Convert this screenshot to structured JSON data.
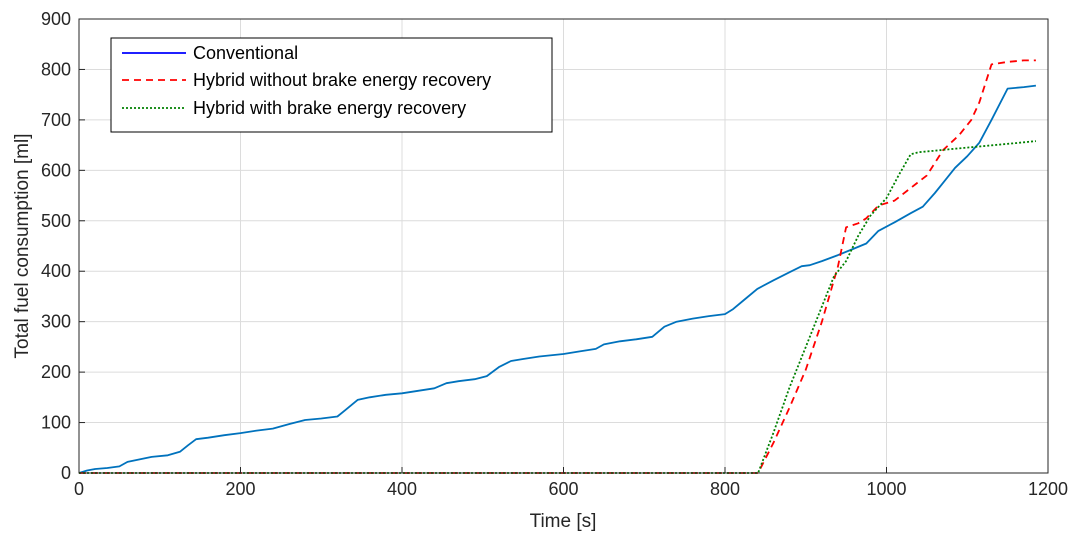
{
  "chart_data": {
    "type": "line",
    "xlabel": "Time [s]",
    "ylabel": "Total fuel consumption [ml]",
    "xlim": [
      0,
      1200
    ],
    "ylim": [
      0,
      900
    ],
    "xticks": [
      0,
      200,
      400,
      600,
      800,
      1000,
      1200
    ],
    "yticks": [
      0,
      100,
      200,
      300,
      400,
      500,
      600,
      700,
      800,
      900
    ],
    "grid": true,
    "legend_position": "top-left",
    "series": [
      {
        "name": "Conventional",
        "color": "#0072BD",
        "style": "solid",
        "legend_color": "#0000FF",
        "x": [
          0,
          10,
          20,
          35,
          50,
          60,
          75,
          90,
          110,
          125,
          135,
          145,
          160,
          180,
          200,
          220,
          240,
          260,
          280,
          300,
          320,
          330,
          345,
          360,
          380,
          400,
          420,
          440,
          455,
          470,
          490,
          505,
          520,
          535,
          550,
          570,
          600,
          620,
          640,
          650,
          670,
          690,
          710,
          725,
          740,
          760,
          780,
          800,
          810,
          825,
          840,
          860,
          880,
          895,
          905,
          920,
          940,
          960,
          975,
          990,
          1010,
          1030,
          1045,
          1060,
          1070,
          1085,
          1100,
          1115,
          1130,
          1150,
          1170,
          1185
        ],
        "y": [
          0,
          5,
          8,
          10,
          13,
          22,
          27,
          32,
          35,
          42,
          55,
          67,
          70,
          75,
          79,
          84,
          88,
          97,
          105,
          108,
          112,
          125,
          145,
          150,
          155,
          158,
          163,
          168,
          178,
          182,
          186,
          192,
          210,
          222,
          226,
          231,
          236,
          241,
          246,
          255,
          261,
          265,
          270,
          290,
          300,
          306,
          311,
          315,
          325,
          345,
          365,
          382,
          398,
          410,
          412,
          420,
          432,
          445,
          455,
          480,
          497,
          515,
          528,
          555,
          575,
          605,
          628,
          655,
          700,
          762,
          765,
          768
        ]
      },
      {
        "name": "Hybrid without brake energy recovery",
        "color": "#FF0000",
        "style": "dashed",
        "legend_color": "#FF0000",
        "x": [
          0,
          841,
          860,
          880,
          900,
          920,
          940,
          950,
          965,
          975,
          990,
          1010,
          1030,
          1050,
          1070,
          1090,
          1105,
          1115,
          1130,
          1150,
          1170,
          1185
        ],
        "y": [
          0,
          0,
          60,
          130,
          205,
          300,
          410,
          487,
          495,
          505,
          530,
          540,
          565,
          590,
          640,
          670,
          700,
          735,
          810,
          815,
          818,
          818
        ]
      },
      {
        "name": "Hybrid with brake energy recovery",
        "color": "#008000",
        "style": "dotted",
        "legend_color": "#008000",
        "x": [
          0,
          841,
          860,
          880,
          900,
          920,
          935,
          950,
          965,
          980,
          1000,
          1015,
          1030,
          1040,
          1060,
          1080,
          1100,
          1120,
          1140,
          1160,
          1185
        ],
        "y": [
          0,
          0,
          80,
          170,
          250,
          330,
          390,
          420,
          470,
          510,
          545,
          590,
          632,
          636,
          639,
          642,
          645,
          648,
          651,
          654,
          658
        ]
      }
    ]
  }
}
